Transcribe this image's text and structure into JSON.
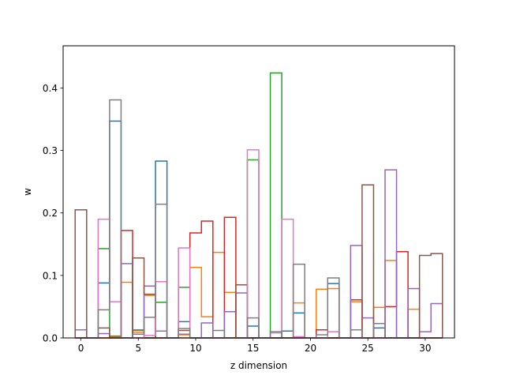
{
  "chart_data": {
    "type": "histogram-step",
    "xlabel": "z dimension",
    "ylabel": "w",
    "xlim": [
      -1.55,
      32.55
    ],
    "ylim": [
      0,
      0.4675
    ],
    "xticks": [
      0,
      5,
      10,
      15,
      20,
      25,
      30
    ],
    "yticks": [
      0.0,
      0.1,
      0.2,
      0.3,
      0.4
    ],
    "yticklabels": [
      "0.0",
      "0.1",
      "0.2",
      "0.3",
      "0.4"
    ],
    "grid": false,
    "legend": "none",
    "colors": [
      "#1f77b4",
      "#ff7f0e",
      "#2ca02c",
      "#d62728",
      "#9467bd",
      "#8c564b",
      "#e377c2",
      "#7f7f7f"
    ],
    "series": [
      {
        "color": "#1f77b4",
        "values": [
          0,
          0,
          0.088,
          0.347,
          0,
          0,
          0,
          0.283,
          0,
          0.026,
          0,
          0,
          0,
          0,
          0,
          0.019,
          0,
          0,
          0.011,
          0.04,
          0,
          0,
          0.087,
          0,
          0,
          0,
          0.016,
          0,
          0,
          0,
          0,
          0
        ]
      },
      {
        "color": "#ff7f0e",
        "values": [
          0,
          0,
          0,
          0.002,
          0.089,
          0.009,
          0.068,
          0,
          0,
          0.005,
          0.113,
          0.034,
          0.137,
          0.073,
          0,
          0,
          0,
          0,
          0,
          0.056,
          0,
          0.078,
          0.079,
          0,
          0.058,
          0,
          0.049,
          0.124,
          0,
          0.046,
          0,
          0
        ]
      },
      {
        "color": "#2ca02c",
        "values": [
          0,
          0,
          0.143,
          0.003,
          0,
          0.012,
          0,
          0.057,
          0,
          0.081,
          0,
          0,
          0,
          0,
          0,
          0.285,
          0,
          0.424,
          0,
          0,
          0,
          0,
          0,
          0,
          0,
          0,
          0,
          0,
          0,
          0,
          0,
          0
        ]
      },
      {
        "color": "#d62728",
        "values": [
          0,
          0,
          0,
          0,
          0.172,
          0,
          0,
          0,
          0,
          0,
          0.168,
          0.187,
          0,
          0.193,
          0,
          0,
          0,
          0,
          0,
          0,
          0,
          0.013,
          0,
          0,
          0.061,
          0,
          0,
          0.05,
          0.138,
          0,
          0,
          0
        ]
      },
      {
        "color": "#9467bd",
        "values": [
          0.013,
          0,
          0.007,
          0,
          0.119,
          0.013,
          0.083,
          0.011,
          0,
          0.006,
          0,
          0.024,
          0,
          0.042,
          0.072,
          0,
          0,
          0,
          0,
          0,
          0,
          0,
          0,
          0,
          0.148,
          0.032,
          0,
          0.269,
          0,
          0.079,
          0.01,
          0.055
        ]
      },
      {
        "color": "#8c564b",
        "values": [
          0.205,
          0,
          0.016,
          0,
          0,
          0.128,
          0.07,
          0,
          0,
          0.012,
          0,
          0,
          0,
          0,
          0.085,
          0,
          0,
          0,
          0,
          0,
          0,
          0,
          0,
          0,
          0,
          0.245,
          0,
          0,
          0,
          0,
          0.132,
          0.135
        ]
      },
      {
        "color": "#e377c2",
        "values": [
          0,
          0,
          0.19,
          0.058,
          0,
          0,
          0.004,
          0.09,
          0,
          0.144,
          0,
          0,
          0,
          0,
          0,
          0.301,
          0,
          0.008,
          0.19,
          0.002,
          0,
          0,
          0.01,
          0,
          0,
          0,
          0,
          0,
          0,
          0,
          0,
          0
        ]
      },
      {
        "color": "#7f7f7f",
        "values": [
          0,
          0,
          0.045,
          0.381,
          0,
          0.006,
          0.033,
          0.214,
          0,
          0.015,
          0,
          0,
          0.012,
          0,
          0,
          0.032,
          0,
          0.01,
          0,
          0.118,
          0,
          0.005,
          0.096,
          0,
          0.013,
          0,
          0.023,
          0,
          0,
          0,
          0,
          0
        ]
      }
    ]
  }
}
